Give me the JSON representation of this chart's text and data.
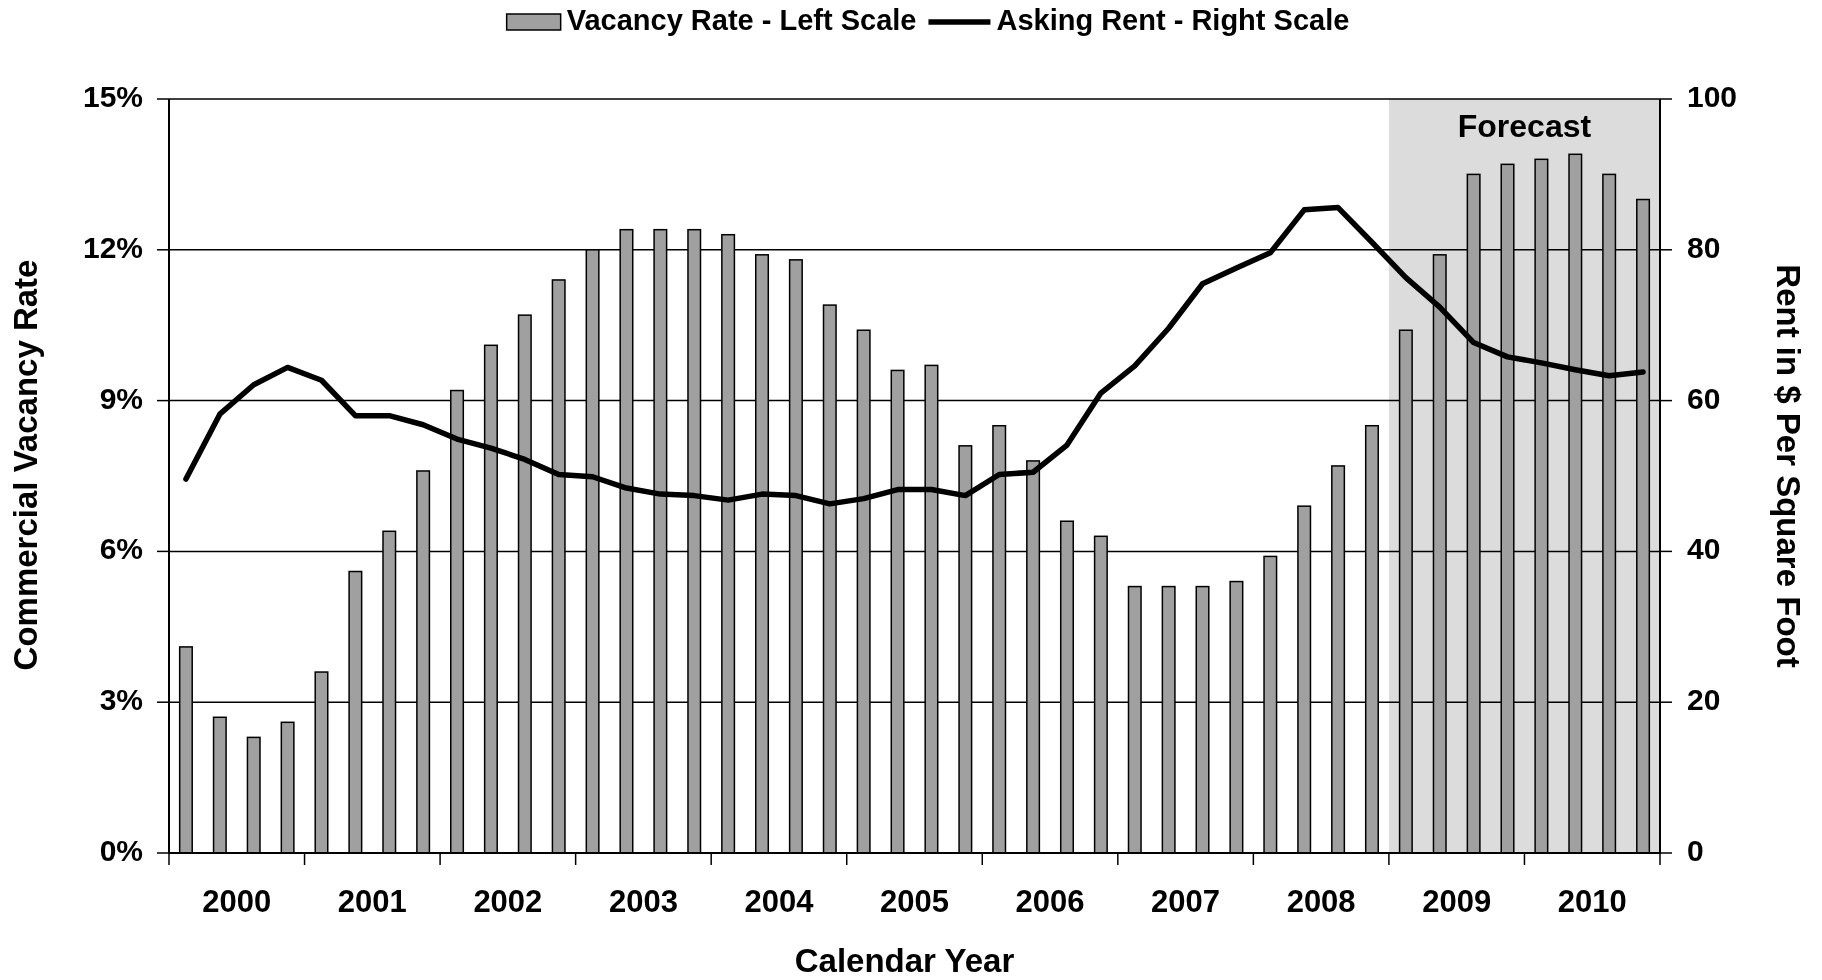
{
  "chart_data": {
    "type": "bar",
    "xlabel": "Calendar Year",
    "ylabel": "Commercial Vacancy Rate",
    "y2label": "Rent in $ Per Square Foot",
    "x": [
      2000.125,
      2000.375,
      2000.625,
      2000.875,
      2001.125,
      2001.375,
      2001.625,
      2001.875,
      2002.125,
      2002.375,
      2002.625,
      2002.875,
      2003.125,
      2003.375,
      2003.625,
      2003.875,
      2004.125,
      2004.375,
      2004.625,
      2004.875,
      2005.125,
      2005.375,
      2005.625,
      2005.875,
      2006.125,
      2006.375,
      2006.625,
      2006.875,
      2007.125,
      2007.375,
      2007.625,
      2007.875,
      2008.125,
      2008.375,
      2008.625,
      2008.875,
      2009.125,
      2009.375,
      2009.625,
      2009.875,
      2010.125,
      2010.375,
      2010.625,
      2010.875
    ],
    "xlim": [
      2000,
      2011
    ],
    "xticks": [
      {
        "value": 2000,
        "label": null
      },
      {
        "value": 2000.5,
        "label": "2000"
      },
      {
        "value": 2001,
        "label": null
      },
      {
        "value": 2001.5,
        "label": "2001"
      },
      {
        "value": 2002,
        "label": null
      },
      {
        "value": 2002.5,
        "label": "2002"
      },
      {
        "value": 2003,
        "label": null
      },
      {
        "value": 2003.5,
        "label": "2003"
      },
      {
        "value": 2004,
        "label": null
      },
      {
        "value": 2004.5,
        "label": "2004"
      },
      {
        "value": 2005,
        "label": null
      },
      {
        "value": 2005.5,
        "label": "2005"
      },
      {
        "value": 2006,
        "label": null
      },
      {
        "value": 2006.5,
        "label": "2006"
      },
      {
        "value": 2007,
        "label": null
      },
      {
        "value": 2007.5,
        "label": "2007"
      },
      {
        "value": 2008,
        "label": null
      },
      {
        "value": 2008.5,
        "label": "2008"
      },
      {
        "value": 2009,
        "label": null
      },
      {
        "value": 2009.5,
        "label": "2009"
      },
      {
        "value": 2010,
        "label": null
      },
      {
        "value": 2010.5,
        "label": "2010"
      },
      {
        "value": 2011,
        "label": null
      }
    ],
    "ylim": [
      0,
      15
    ],
    "yticks": [
      {
        "value": 0,
        "label": "0%"
      },
      {
        "value": 3,
        "label": "3%"
      },
      {
        "value": 6,
        "label": "6%"
      },
      {
        "value": 9,
        "label": "9%"
      },
      {
        "value": 12,
        "label": "12%"
      },
      {
        "value": 15,
        "label": "15%"
      }
    ],
    "y2lim": [
      0,
      100
    ],
    "y2ticks": [
      0,
      20,
      40,
      60,
      80,
      100
    ],
    "series": [
      {
        "name": "Vacancy Rate - Left Scale",
        "color": "#a0a0a0",
        "values": [
          4.1,
          2.7,
          2.3,
          2.6,
          3.6,
          5.6,
          6.4,
          7.6,
          9.2,
          10.1,
          10.7,
          11.4,
          12.0,
          12.4,
          12.4,
          12.4,
          12.3,
          11.9,
          11.8,
          10.9,
          10.4,
          9.6,
          9.7,
          8.1,
          8.5,
          7.8,
          6.6,
          6.3,
          5.3,
          5.3,
          5.3,
          5.4,
          5.9,
          6.9,
          7.7,
          8.5,
          10.4,
          11.9,
          13.5,
          13.7,
          13.8,
          13.9,
          13.5,
          13.0
        ]
      },
      {
        "name": "Asking Rent - Right Scale",
        "type": "line",
        "axis": "y2",
        "color": "#000000",
        "values": [
          49.6,
          58.2,
          62.1,
          64.4,
          62.7,
          58.0,
          58.0,
          56.8,
          54.9,
          53.7,
          52.2,
          50.2,
          49.9,
          48.4,
          47.6,
          47.4,
          46.8,
          47.6,
          47.4,
          46.3,
          47.0,
          48.2,
          48.2,
          47.4,
          50.2,
          50.5,
          54.1,
          61.0,
          64.6,
          69.6,
          75.5,
          77.6,
          79.6,
          85.3,
          85.6,
          81.0,
          76.3,
          72.4,
          67.7,
          65.8,
          65.0,
          64.1,
          63.3,
          63.8
        ]
      }
    ],
    "bands": [
      {
        "axis": "x",
        "from": 2009,
        "to": 2011,
        "label": "Forecast",
        "color": "#dcdcdc"
      }
    ],
    "grid": "y",
    "legend": "top"
  }
}
